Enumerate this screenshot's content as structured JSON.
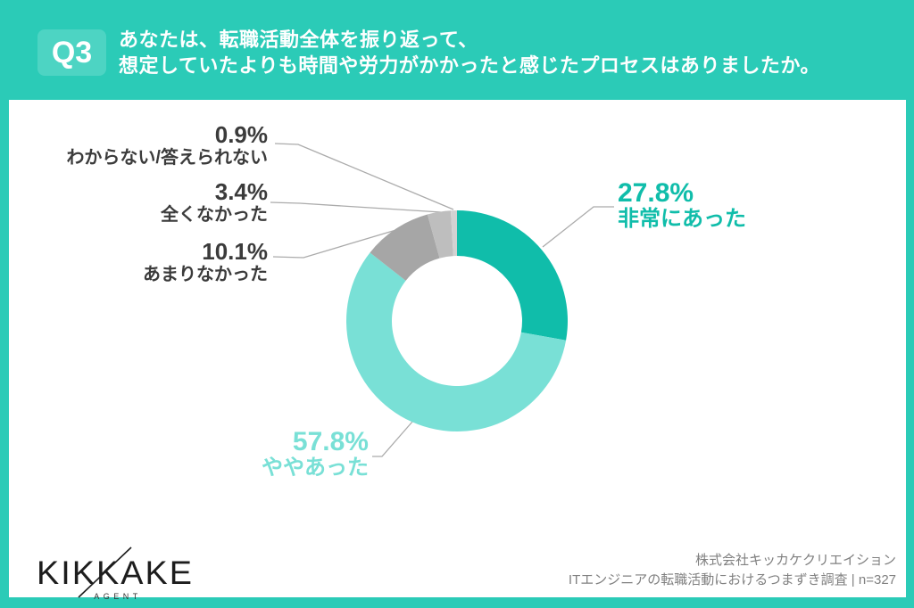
{
  "header": {
    "badge": "Q3",
    "title_line1": "あなたは、転職活動全体を振り返って、",
    "title_line2": "想定していたよりも時間や労力がかかったと感じたプロセスはありましたか。"
  },
  "chart_data": {
    "type": "pie",
    "donut": true,
    "title": "あなたは、転職活動全体を振り返って、想定していたよりも時間や労力がかかったと感じたプロセスはありましたか。",
    "start_angle_deg": 0,
    "direction": "clockwise",
    "inner_radius_ratio": 0.59,
    "series": [
      {
        "label": "非常にあった",
        "value": 27.8,
        "pct_label": "27.8%",
        "color": "#10BDAA"
      },
      {
        "label": "ややあった",
        "value": 57.8,
        "pct_label": "57.8%",
        "color": "#79E0D6"
      },
      {
        "label": "あまりなかった",
        "value": 10.1,
        "pct_label": "10.1%",
        "color": "#A6A6A6"
      },
      {
        "label": "全くなかった",
        "value": 3.4,
        "pct_label": "3.4%",
        "color": "#BEBEBE"
      },
      {
        "label": "わからない/答えられない",
        "value": 0.9,
        "pct_label": "0.9%",
        "color": "#D2D2D2"
      }
    ]
  },
  "footer": {
    "logo_text": "KIKKAKE",
    "logo_sub": "AGENT",
    "credit_line1": "株式会社キッカケクリエイション",
    "credit_line2": "ITエンジニアの転職活動におけるつまずき調査 | n=327"
  },
  "colors": {
    "background_teal": "#2BCBB7",
    "badge_teal": "#4DD4C3",
    "accent_dark_teal": "#10BDAA",
    "accent_light_teal": "#79E0D6",
    "label_text": "#3B3B3B",
    "leader_line": "#ABABAB",
    "credit_text": "#808080"
  }
}
